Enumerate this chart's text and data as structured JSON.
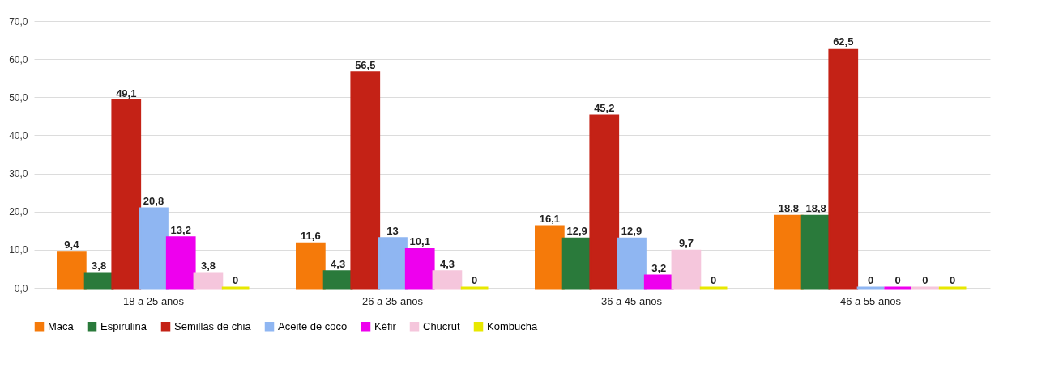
{
  "chart_data": {
    "type": "bar",
    "categories": [
      "18 a 25 años",
      "26 a 35 años",
      "36 a 45 años",
      "46 a 55 años"
    ],
    "series": [
      {
        "name": "Maca",
        "color": "#f57a0a",
        "values": [
          9.4,
          11.6,
          16.1,
          18.8
        ],
        "value_labels": [
          "9,4",
          "11,6",
          "16,1",
          "18,8"
        ]
      },
      {
        "name": "Espirulina",
        "color": "#2a7a3b",
        "values": [
          3.8,
          4.3,
          12.9,
          18.8
        ],
        "value_labels": [
          "3,8",
          "4,3",
          "12,9",
          "18,8"
        ]
      },
      {
        "name": "Semillas de chia",
        "color": "#c42216",
        "values": [
          49.1,
          56.5,
          45.2,
          62.5
        ],
        "value_labels": [
          "49,1",
          "56,5",
          "45,2",
          "62,5"
        ]
      },
      {
        "name": "Aceite de coco",
        "color": "#8fb6f2",
        "values": [
          20.8,
          13,
          12.9,
          0
        ],
        "value_labels": [
          "20,8",
          "13",
          "12,9",
          "0"
        ]
      },
      {
        "name": "Kéfir",
        "color": "#ee00ee",
        "values": [
          13.2,
          10.1,
          3.2,
          0
        ],
        "value_labels": [
          "13,2",
          "10,1",
          "3,2",
          "0"
        ]
      },
      {
        "name": "Chucrut",
        "color": "#f5c6dc",
        "values": [
          3.8,
          4.3,
          9.7,
          0
        ],
        "value_labels": [
          "3,8",
          "4,3",
          "9,7",
          "0"
        ]
      },
      {
        "name": "Kombucha",
        "color": "#e8e800",
        "values": [
          0,
          0,
          0,
          0
        ],
        "value_labels": [
          "0",
          "0",
          "0",
          "0"
        ]
      }
    ],
    "ylim": [
      0,
      70
    ],
    "yticks": [
      {
        "value": 0,
        "label": "0,0"
      },
      {
        "value": 10,
        "label": "10,0"
      },
      {
        "value": 20,
        "label": "20,0"
      },
      {
        "value": 30,
        "label": "30,0"
      },
      {
        "value": 40,
        "label": "40,0"
      },
      {
        "value": 50,
        "label": "50,0"
      },
      {
        "value": 60,
        "label": "60,0"
      },
      {
        "value": 70,
        "label": "70,0"
      }
    ],
    "grid": "y",
    "legend": "bottom"
  }
}
